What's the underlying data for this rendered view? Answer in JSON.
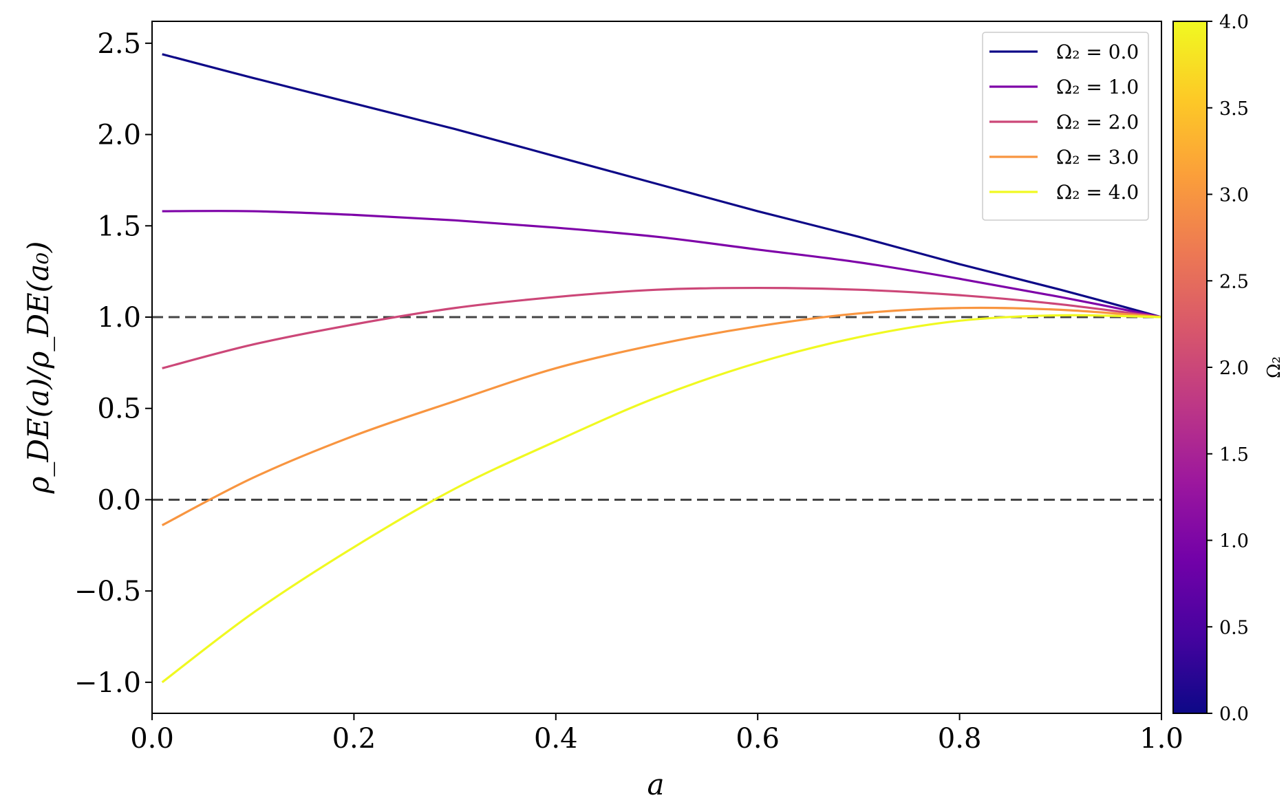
{
  "chart_data": {
    "type": "line",
    "xlabel": "a",
    "ylabel": "ρ_DE(a)/ρ_DE(a₀)",
    "xlim": [
      0.0,
      1.0
    ],
    "ylim": [
      -1.17,
      2.62
    ],
    "x_ticks": [
      0.0,
      0.2,
      0.4,
      0.6,
      0.8,
      1.0
    ],
    "x_tick_labels": [
      "0.0",
      "0.2",
      "0.4",
      "0.6",
      "0.8",
      "1.0"
    ],
    "y_ticks": [
      -1.0,
      -0.5,
      0.0,
      0.5,
      1.0,
      1.5,
      2.0,
      2.5
    ],
    "y_tick_labels": [
      "−1.0",
      "−0.5",
      "0.0",
      "0.5",
      "1.0",
      "1.5",
      "2.0",
      "2.5"
    ],
    "grid": false,
    "legend_position": "top-right",
    "reference_lines": [
      {
        "y": 1.0,
        "style": "dashed",
        "color": "#444444"
      },
      {
        "y": 0.0,
        "style": "dashed",
        "color": "#444444"
      }
    ],
    "x": [
      0.01,
      0.1,
      0.2,
      0.3,
      0.4,
      0.5,
      0.6,
      0.7,
      0.8,
      0.9,
      1.0
    ],
    "series": [
      {
        "name": "Ω₂ = 0.0",
        "color": "#0d0887",
        "values": [
          2.44,
          2.31,
          2.17,
          2.03,
          1.88,
          1.73,
          1.58,
          1.44,
          1.29,
          1.15,
          1.0
        ]
      },
      {
        "name": "Ω₂ = 1.0",
        "color": "#7e03a8",
        "values": [
          1.58,
          1.58,
          1.56,
          1.53,
          1.49,
          1.44,
          1.37,
          1.3,
          1.21,
          1.11,
          1.0
        ]
      },
      {
        "name": "Ω₂ = 2.0",
        "color": "#cc4778",
        "values": [
          0.72,
          0.85,
          0.96,
          1.05,
          1.11,
          1.15,
          1.16,
          1.15,
          1.12,
          1.07,
          1.0
        ]
      },
      {
        "name": "Ω₂ = 3.0",
        "color": "#f89540",
        "values": [
          -0.14,
          0.12,
          0.35,
          0.54,
          0.72,
          0.85,
          0.95,
          1.02,
          1.05,
          1.04,
          1.0
        ]
      },
      {
        "name": "Ω₂ = 4.0",
        "color": "#f0f921",
        "values": [
          -1.0,
          -0.62,
          -0.26,
          0.06,
          0.32,
          0.56,
          0.75,
          0.89,
          0.98,
          1.01,
          1.0
        ]
      }
    ],
    "colorbar": {
      "label": "Ω₂",
      "range": [
        0.0,
        4.0
      ],
      "ticks": [
        0.0,
        0.5,
        1.0,
        1.5,
        2.0,
        2.5,
        3.0,
        3.5,
        4.0
      ],
      "tick_labels": [
        "0.0",
        "0.5",
        "1.0",
        "1.5",
        "2.0",
        "2.5",
        "3.0",
        "3.5",
        "4.0"
      ],
      "colormap": "plasma",
      "stops": [
        "#0d0887",
        "#46039f",
        "#7201a8",
        "#9c179e",
        "#bd3786",
        "#d8576b",
        "#ed7953",
        "#fb9f3a",
        "#fdca26",
        "#f0f921"
      ]
    }
  }
}
